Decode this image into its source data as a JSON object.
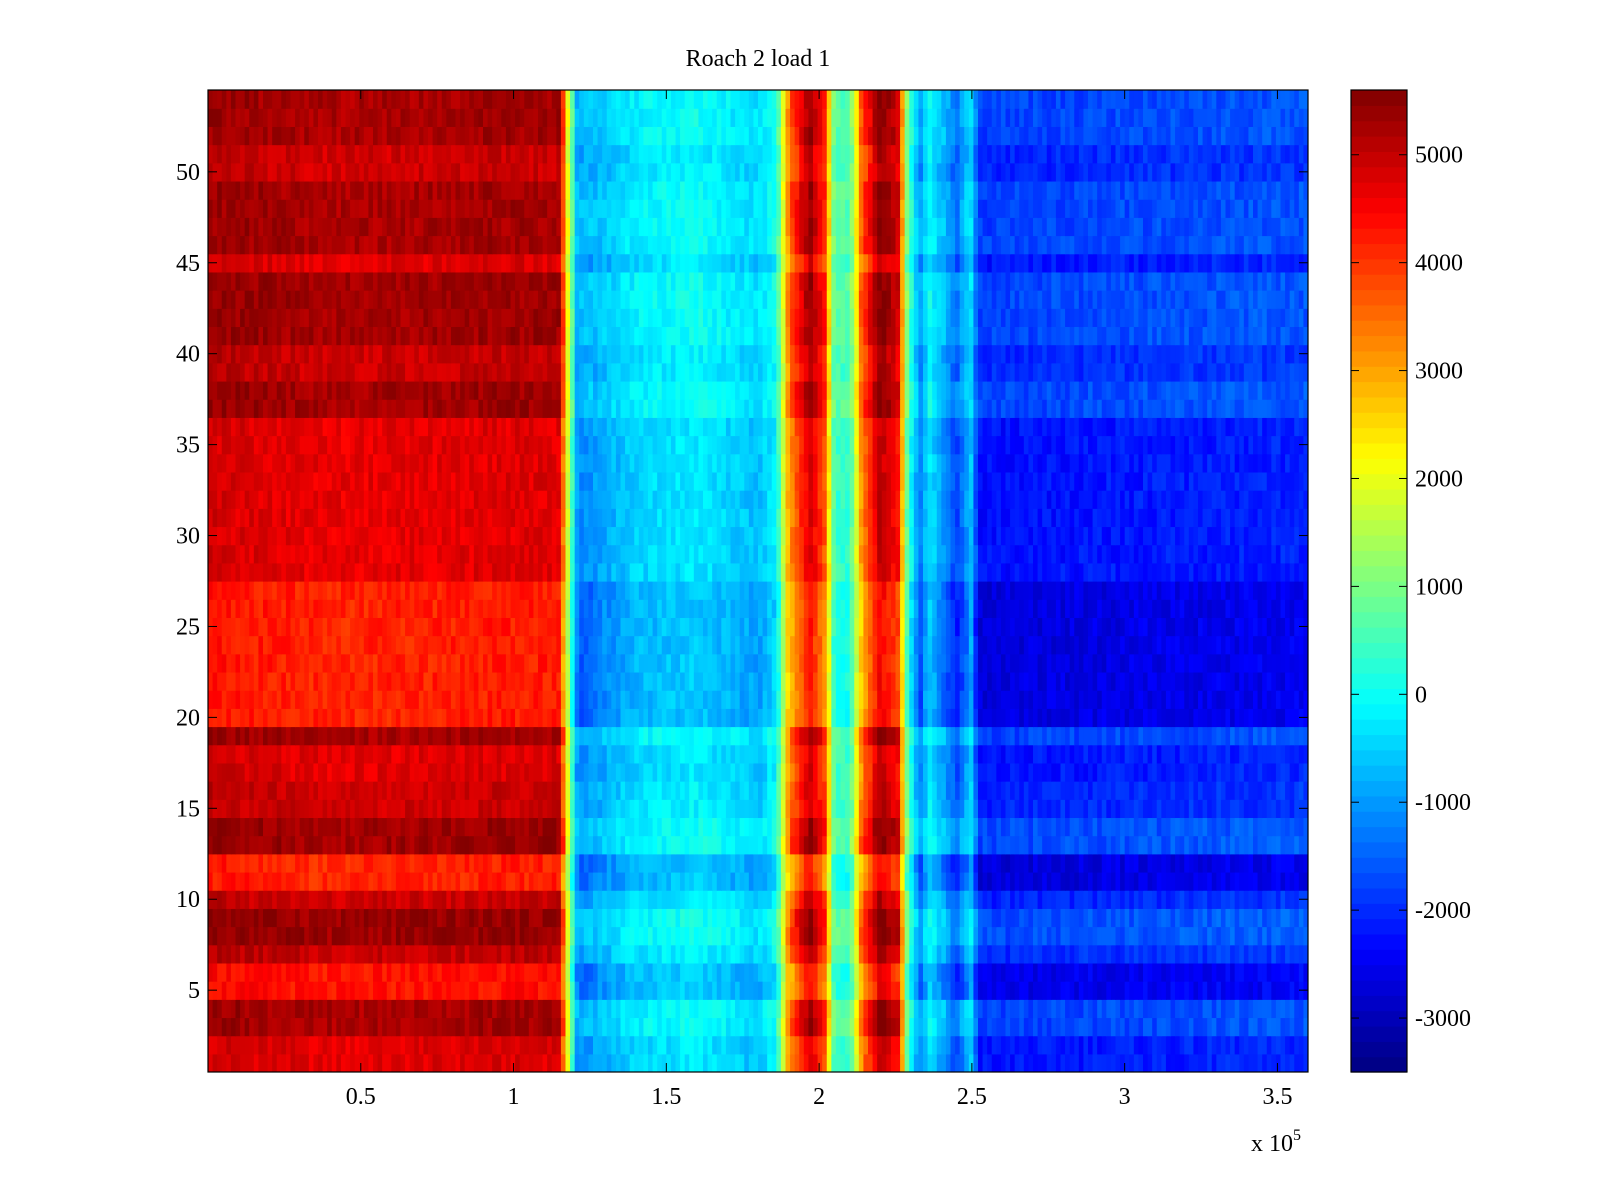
{
  "chart_data": {
    "type": "heatmap",
    "title": "Roach 2 load 1",
    "xlabel": "",
    "ylabel": "",
    "x_exponent_label": "x 10",
    "x_exponent_power": "5",
    "xlim": [
      0,
      3.6
    ],
    "ylim": [
      0.5,
      54.5
    ],
    "x_ticks": [
      {
        "value": 0.5,
        "label": "0.5"
      },
      {
        "value": 1,
        "label": "1"
      },
      {
        "value": 1.5,
        "label": "1.5"
      },
      {
        "value": 2,
        "label": "2"
      },
      {
        "value": 2.5,
        "label": "2.5"
      },
      {
        "value": 3,
        "label": "3"
      },
      {
        "value": 3.5,
        "label": "3.5"
      }
    ],
    "y_ticks": [
      {
        "value": 5,
        "label": "5"
      },
      {
        "value": 10,
        "label": "10"
      },
      {
        "value": 15,
        "label": "15"
      },
      {
        "value": 20,
        "label": "20"
      },
      {
        "value": 25,
        "label": "25"
      },
      {
        "value": 30,
        "label": "30"
      },
      {
        "value": 35,
        "label": "35"
      },
      {
        "value": 40,
        "label": "40"
      },
      {
        "value": 45,
        "label": "45"
      },
      {
        "value": 50,
        "label": "50"
      }
    ],
    "colorbar": {
      "colormap": "jet",
      "range": [
        -3500,
        5600
      ],
      "ticks": [
        {
          "value": 5000,
          "label": "5000"
        },
        {
          "value": 4000,
          "label": "4000"
        },
        {
          "value": 3000,
          "label": "3000"
        },
        {
          "value": 2000,
          "label": "2000"
        },
        {
          "value": 1000,
          "label": "1000"
        },
        {
          "value": 0,
          "label": "0"
        },
        {
          "value": -1000,
          "label": "-1000"
        },
        {
          "value": -2000,
          "label": "-2000"
        },
        {
          "value": -3000,
          "label": "-3000"
        }
      ]
    },
    "column_profile": [
      {
        "x": 0.0,
        "v": 4800
      },
      {
        "x": 0.4,
        "v": 4600
      },
      {
        "x": 1.0,
        "v": 4700
      },
      {
        "x": 1.15,
        "v": 4700
      },
      {
        "x": 1.18,
        "v": 1500
      },
      {
        "x": 1.21,
        "v": -1200
      },
      {
        "x": 1.4,
        "v": -500
      },
      {
        "x": 1.6,
        "v": -300
      },
      {
        "x": 1.8,
        "v": -700
      },
      {
        "x": 1.86,
        "v": -200
      },
      {
        "x": 1.9,
        "v": 3000
      },
      {
        "x": 1.97,
        "v": 4800
      },
      {
        "x": 2.02,
        "v": 3600
      },
      {
        "x": 2.05,
        "v": 400
      },
      {
        "x": 2.1,
        "v": 300
      },
      {
        "x": 2.14,
        "v": 3200
      },
      {
        "x": 2.2,
        "v": 5000
      },
      {
        "x": 2.26,
        "v": 4300
      },
      {
        "x": 2.29,
        "v": 500
      },
      {
        "x": 2.33,
        "v": -1400
      },
      {
        "x": 2.36,
        "v": -300
      },
      {
        "x": 2.45,
        "v": -1800
      },
      {
        "x": 2.5,
        "v": -600
      },
      {
        "x": 2.52,
        "v": -2300
      },
      {
        "x": 3.0,
        "v": -2200
      },
      {
        "x": 3.6,
        "v": -2100
      }
    ],
    "row_bands": [
      {
        "y": [
          0.5,
          2.5
        ],
        "level": 0.1
      },
      {
        "y": [
          2.5,
          4.5
        ],
        "level": 0.7
      },
      {
        "y": [
          4.5,
          6.5
        ],
        "level": -0.4
      },
      {
        "y": [
          6.5,
          7.5
        ],
        "level": 0.4
      },
      {
        "y": [
          7.5,
          9.5
        ],
        "level": 0.85
      },
      {
        "y": [
          9.5,
          10.5
        ],
        "level": 0.3
      },
      {
        "y": [
          10.5,
          12.5
        ],
        "level": -0.6
      },
      {
        "y": [
          12.5,
          14.5
        ],
        "level": 0.8
      },
      {
        "y": [
          14.5,
          16.5
        ],
        "level": 0.3
      },
      {
        "y": [
          16.5,
          18.5
        ],
        "level": 0.1
      },
      {
        "y": [
          18.5,
          19.5
        ],
        "level": 0.7
      },
      {
        "y": [
          19.5,
          27.5
        ],
        "level": -0.55
      },
      {
        "y": [
          27.5,
          36.5
        ],
        "level": 0.05
      },
      {
        "y": [
          36.5,
          38.5
        ],
        "level": 0.75
      },
      {
        "y": [
          38.5,
          40.5
        ],
        "level": 0.35
      },
      {
        "y": [
          40.5,
          44.5
        ],
        "level": 0.75
      },
      {
        "y": [
          44.5,
          45.5
        ],
        "level": 0.1
      },
      {
        "y": [
          45.5,
          49.5
        ],
        "level": 0.7
      },
      {
        "y": [
          49.5,
          51.5
        ],
        "level": 0.3
      },
      {
        "y": [
          51.5,
          54.5
        ],
        "level": 0.7
      }
    ]
  }
}
